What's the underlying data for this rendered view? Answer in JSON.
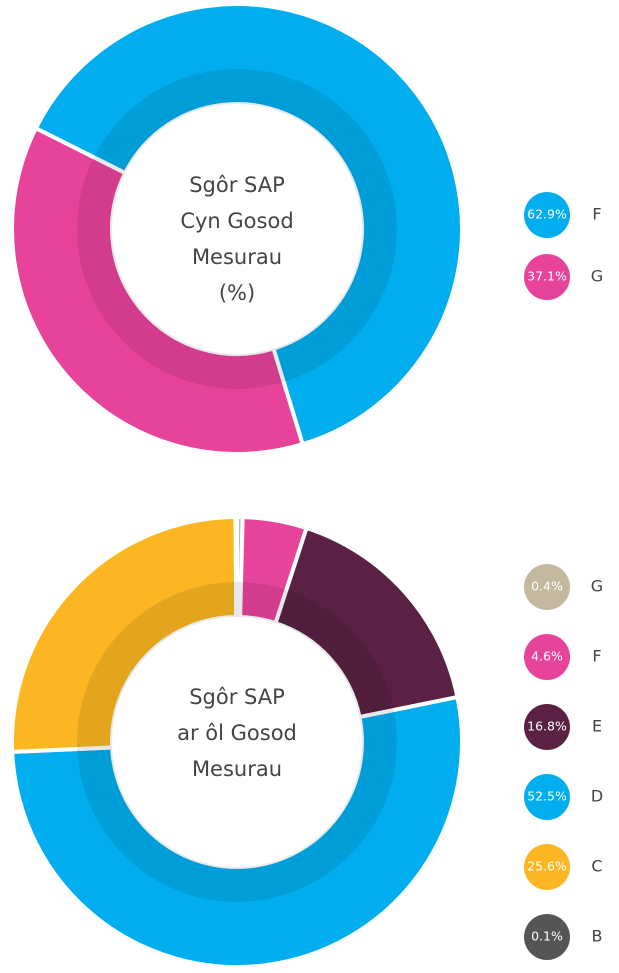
{
  "chart_data": [
    {
      "type": "donut",
      "title": [
        "Sgôr SAP",
        "Cyn Gosod",
        "Mesurau",
        "(%)"
      ],
      "categories": [
        "F",
        "G"
      ],
      "values": [
        62.9,
        37.1
      ],
      "value_labels": [
        "62.9%",
        "37.1%"
      ],
      "colors": [
        "#00aeef",
        "#e8439b"
      ]
    },
    {
      "type": "donut",
      "title": [
        "Sgôr SAP",
        "ar ôl Gosod",
        "Mesurau"
      ],
      "categories": [
        "G",
        "F",
        "E",
        "D",
        "C",
        "B"
      ],
      "values": [
        0.4,
        4.6,
        16.8,
        52.5,
        25.6,
        0.1
      ],
      "value_labels": [
        "0.4%",
        "4.6%",
        "16.8%",
        "52.5%",
        "25.6%",
        "0.1%"
      ],
      "colors": [
        "#c4b8a0",
        "#e8439b",
        "#5b2145",
        "#00aeef",
        "#fbb622",
        "#555555"
      ]
    }
  ]
}
